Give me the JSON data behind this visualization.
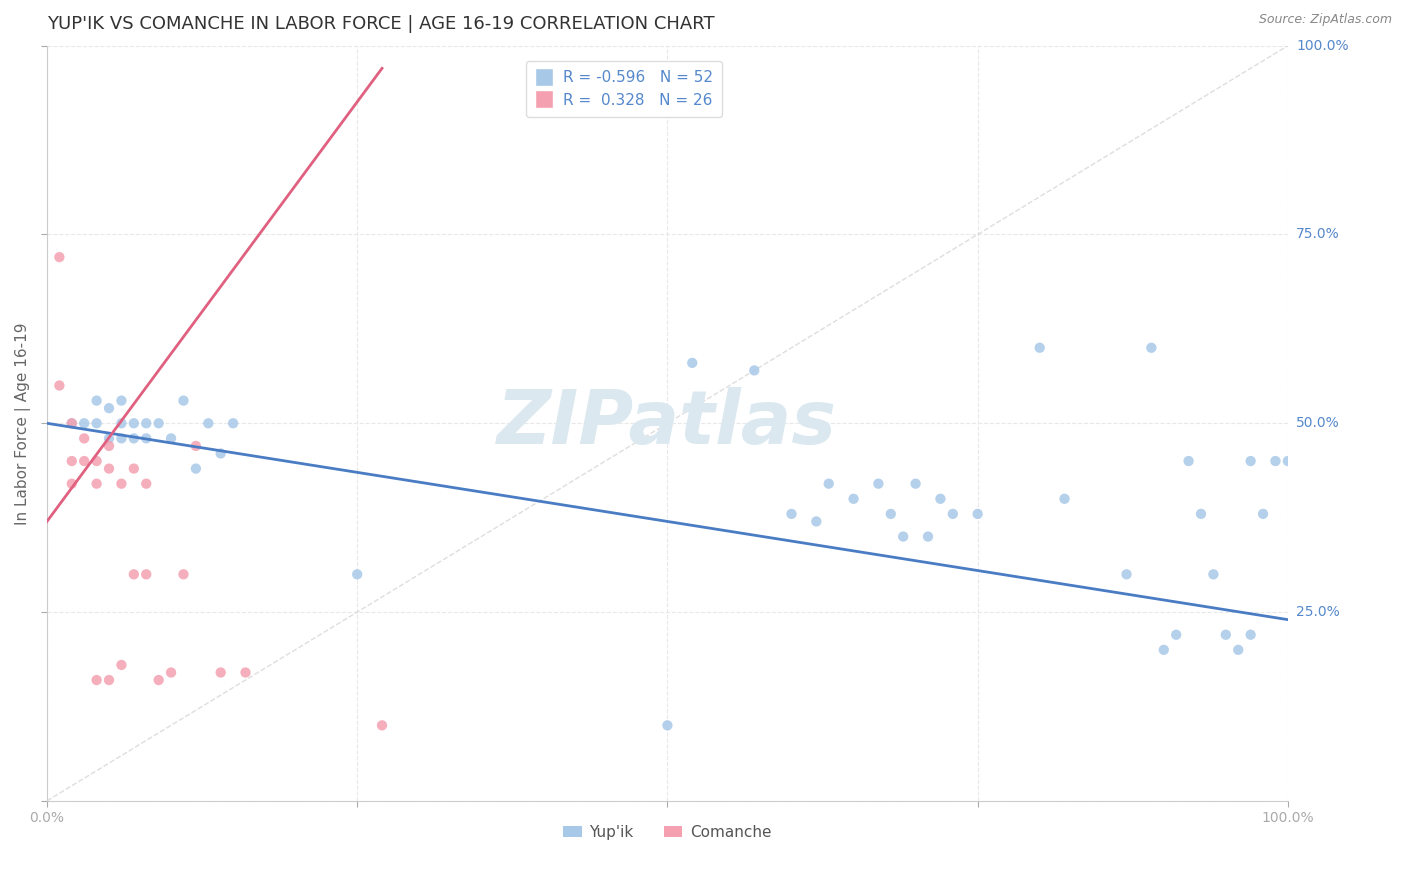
{
  "title": "YUP'IK VS COMANCHE IN LABOR FORCE | AGE 16-19 CORRELATION CHART",
  "source": "Source: ZipAtlas.com",
  "ylabel": "In Labor Force | Age 16-19",
  "xlim": [
    0.0,
    1.0
  ],
  "ylim": [
    0.0,
    1.0
  ],
  "watermark": "ZIPatlas",
  "yup_points_x": [
    0.02,
    0.03,
    0.04,
    0.04,
    0.05,
    0.05,
    0.06,
    0.06,
    0.06,
    0.07,
    0.07,
    0.08,
    0.08,
    0.09,
    0.1,
    0.11,
    0.12,
    0.13,
    0.14,
    0.15,
    0.25,
    0.5,
    0.52,
    0.57,
    0.6,
    0.62,
    0.63,
    0.65,
    0.67,
    0.68,
    0.69,
    0.7,
    0.71,
    0.72,
    0.73,
    0.75,
    0.8,
    0.82,
    0.87,
    0.89,
    0.9,
    0.91,
    0.92,
    0.93,
    0.94,
    0.95,
    0.96,
    0.97,
    0.97,
    0.98,
    0.99,
    1.0
  ],
  "yup_points_y": [
    0.5,
    0.5,
    0.5,
    0.53,
    0.48,
    0.52,
    0.48,
    0.5,
    0.53,
    0.48,
    0.5,
    0.48,
    0.5,
    0.5,
    0.48,
    0.53,
    0.44,
    0.5,
    0.46,
    0.5,
    0.3,
    0.1,
    0.58,
    0.57,
    0.38,
    0.37,
    0.42,
    0.4,
    0.42,
    0.38,
    0.35,
    0.42,
    0.35,
    0.4,
    0.38,
    0.38,
    0.6,
    0.4,
    0.3,
    0.6,
    0.2,
    0.22,
    0.45,
    0.38,
    0.3,
    0.22,
    0.2,
    0.45,
    0.22,
    0.38,
    0.45,
    0.45
  ],
  "com_points_x": [
    0.01,
    0.01,
    0.02,
    0.02,
    0.02,
    0.03,
    0.03,
    0.04,
    0.04,
    0.04,
    0.05,
    0.05,
    0.05,
    0.06,
    0.06,
    0.07,
    0.07,
    0.08,
    0.08,
    0.09,
    0.1,
    0.11,
    0.12,
    0.14,
    0.16,
    0.27
  ],
  "com_points_y": [
    0.72,
    0.55,
    0.5,
    0.42,
    0.45,
    0.45,
    0.48,
    0.42,
    0.45,
    0.16,
    0.44,
    0.47,
    0.16,
    0.42,
    0.18,
    0.44,
    0.3,
    0.42,
    0.3,
    0.16,
    0.17,
    0.3,
    0.47,
    0.17,
    0.17,
    0.1
  ],
  "yup_line_x": [
    0.0,
    1.0
  ],
  "yup_line_y": [
    0.5,
    0.24
  ],
  "com_line_x": [
    0.0,
    0.27
  ],
  "com_line_y": [
    0.37,
    0.97
  ],
  "diag_color": "#d0d0d0",
  "yup_color": "#a8c8e8",
  "com_color": "#f4a0b0",
  "yup_line_color": "#4a7cc4",
  "com_line_color": "#e06080",
  "background_color": "#ffffff",
  "grid_color": "#e8e8e8",
  "title_fontsize": 13,
  "label_fontsize": 11,
  "tick_fontsize": 10,
  "legend_fontsize": 11,
  "source_fontsize": 9
}
